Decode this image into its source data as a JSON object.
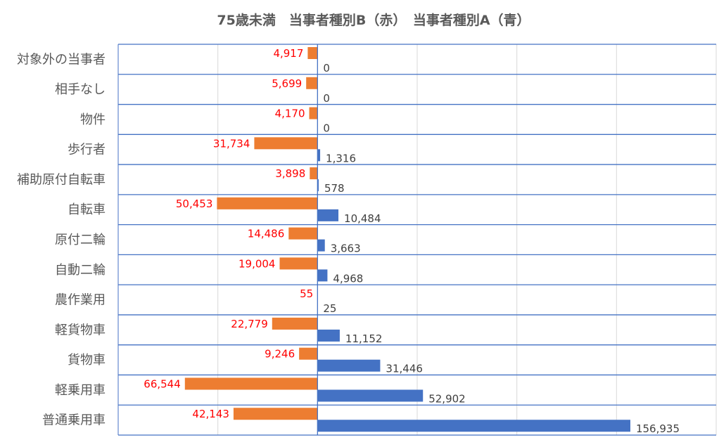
{
  "chart_data": {
    "type": "bar",
    "orientation": "horizontal-diverging",
    "title": "75歳未満　当事者種別B（赤）　当事者種別A（青）",
    "categories": [
      "対象外の当事者",
      "相手なし",
      "物件",
      "歩行者",
      "補助原付自転車",
      "自転車",
      "原付二輪",
      "自動二輪",
      "農作業用",
      "軽貨物車",
      "貨物車",
      "軽乗用車",
      "普通乗用車"
    ],
    "series": [
      {
        "name": "当事者種別B",
        "color": "#ed7d31",
        "label_color": "#ff0000",
        "direction": "left",
        "values": [
          4917,
          5699,
          4170,
          31734,
          3898,
          50453,
          14486,
          19004,
          55,
          22779,
          9246,
          66544,
          42143
        ]
      },
      {
        "name": "当事者種別A",
        "color": "#4472c4",
        "label_color": "#404040",
        "direction": "right",
        "values": [
          0,
          0,
          0,
          1316,
          578,
          10484,
          3663,
          4968,
          25,
          11152,
          31446,
          52902,
          156935
        ]
      }
    ],
    "xlim": [
      -100000,
      200000
    ],
    "grid_interval": 50000,
    "grid": true,
    "row_separator_color": "#4472c4",
    "gridline_color": "#d9d9d9"
  }
}
